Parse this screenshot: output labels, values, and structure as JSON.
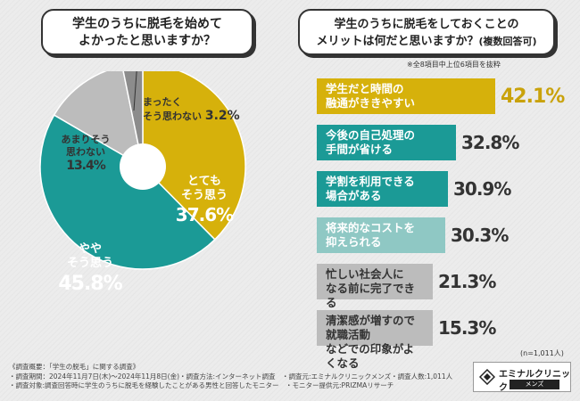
{
  "questions": {
    "left": [
      "学生のうちに脱毛を始めて",
      "よかったと思いますか？"
    ],
    "right_line1": "学生のうちに脱毛をしておくことの",
    "right_line2": "メリットは何だと思いますか？",
    "right_suffix": "(複数回答可)"
  },
  "note_top": "※全8項目中上位6項目を抜粋",
  "n_note": "(n=1,011人)",
  "colors": {
    "yellow": "#d6b10b",
    "teal": "#1b9a96",
    "gray": "#bcbcbc",
    "darkgray": "#8c8c8c",
    "light_teal": "#8fc8c4",
    "dark": "#333333"
  },
  "chart_data": [
    {
      "type": "pie",
      "title": "学生のうちに脱毛を始めてよかったと思いますか？",
      "start_angle_deg": 0,
      "direction": "clockwise",
      "slices": [
        {
          "label_lines": [
            "とても",
            "そう思う"
          ],
          "value": 37.6,
          "pct_text": "37.6%",
          "color": "#d6b10b"
        },
        {
          "label_lines": [
            "やや",
            "そう思う"
          ],
          "value": 45.8,
          "pct_text": "45.8%",
          "color": "#1b9a96"
        },
        {
          "label_lines": [
            "あまりそう",
            "思わない"
          ],
          "value": 13.4,
          "pct_text": "13.4%",
          "color": "#bcbcbc"
        },
        {
          "label_lines": [
            "まったく",
            "そう思わない"
          ],
          "value": 3.2,
          "pct_text": "3.2%",
          "color": "#8c8c8c"
        }
      ]
    },
    {
      "type": "bar",
      "title": "学生のうちに脱毛をしておくことのメリットは何だと思いますか？(複数回答可)",
      "orientation": "horizontal",
      "unit": "%",
      "xlim": [
        0,
        42.1
      ],
      "bars": [
        {
          "label_lines": [
            "学生だと時間の",
            "融通がききやすい"
          ],
          "value": 42.1,
          "pct_text": "42.1%",
          "color": "#d6b10b"
        },
        {
          "label_lines": [
            "今後の自己処理の",
            "手間が省ける"
          ],
          "value": 32.8,
          "pct_text": "32.8%",
          "color": "#1b9a96"
        },
        {
          "label_lines": [
            "学割を利用できる",
            "場合がある"
          ],
          "value": 30.9,
          "pct_text": "30.9%",
          "color": "#1b9a96"
        },
        {
          "label_lines": [
            "将来的なコストを",
            "抑えられる"
          ],
          "value": 30.3,
          "pct_text": "30.3%",
          "color": "#8fc8c4"
        },
        {
          "label_lines": [
            "忙しい社会人に",
            "なる前に完了できる"
          ],
          "value": 21.3,
          "pct_text": "21.3%",
          "color": "#bcbcbc"
        },
        {
          "label_lines": [
            "清潔感が増すので就職活動",
            "などでの印象がよくなる"
          ],
          "value": 15.3,
          "pct_text": "15.3%",
          "color": "#bcbcbc"
        }
      ]
    }
  ],
  "footer": [
    "《調査概要：「学生の脱毛」に関する調査》",
    "・調査期間：2024年11月7日(木)～2024年11月8日(金)・調査方法:インターネット調査　・調査元:エミナルクリニックメンズ・調査人数:1,011人",
    "・調査対象:調査回答時に学生のうちに脱毛を経験したことがある男性と回答したモニター　・モニター提供元:PRIZMAリサーチ"
  ],
  "logo": {
    "name": "エミナルクリニック",
    "sub": "メンズ"
  }
}
